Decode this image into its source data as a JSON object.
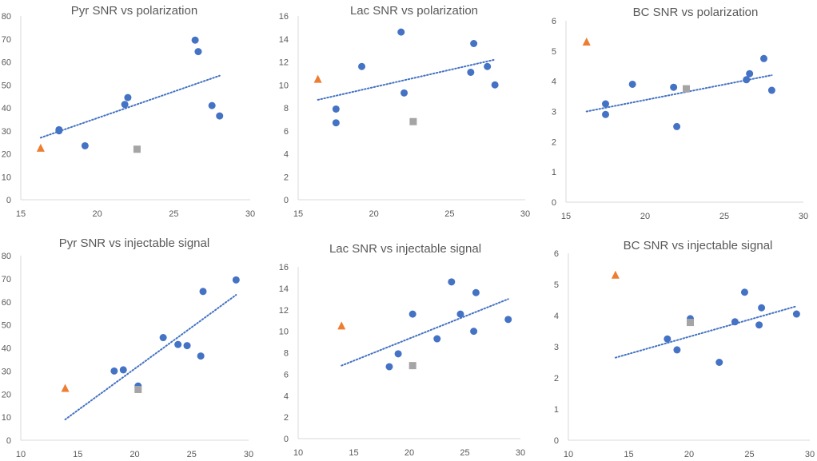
{
  "chart_data": [
    {
      "type": "scatter",
      "title": "Pyr SNR vs polarization",
      "xlim": [
        15,
        30
      ],
      "ylim": [
        0,
        80
      ],
      "xticks": [
        15,
        20,
        25,
        30
      ],
      "yticks": [
        0,
        10,
        20,
        30,
        40,
        50,
        60,
        70,
        80
      ],
      "series": [
        {
          "name": "circles",
          "marker": "circle",
          "color": "#4472c4",
          "x": [
            17.5,
            19.2,
            21.8,
            22.0,
            26.4,
            26.6,
            27.5,
            28.0,
            17.5
          ],
          "y": [
            30.0,
            23.5,
            41.5,
            44.5,
            69.5,
            64.5,
            41.0,
            36.5,
            30.5
          ]
        },
        {
          "name": "triangle",
          "marker": "triangle",
          "color": "#ed7d31",
          "x": [
            16.3
          ],
          "y": [
            22.5
          ]
        },
        {
          "name": "square",
          "marker": "square",
          "color": "#a5a5a5",
          "x": [
            22.6
          ],
          "y": [
            22.0
          ]
        }
      ],
      "trendline": {
        "x": [
          16.3,
          28.0
        ],
        "y": [
          27.0,
          54.0
        ],
        "color": "#4472c4"
      }
    },
    {
      "type": "scatter",
      "title": "Lac SNR vs polarization",
      "xlim": [
        15,
        30
      ],
      "ylim": [
        0,
        16
      ],
      "xticks": [
        15,
        20,
        25,
        30
      ],
      "yticks": [
        0,
        2,
        4,
        6,
        8,
        10,
        12,
        14,
        16
      ],
      "series": [
        {
          "name": "circles",
          "marker": "circle",
          "color": "#4472c4",
          "x": [
            17.5,
            17.5,
            19.2,
            21.8,
            22.0,
            26.4,
            26.6,
            27.5,
            28.0
          ],
          "y": [
            7.9,
            6.7,
            11.6,
            14.6,
            9.3,
            11.1,
            13.6,
            11.6,
            10.0
          ]
        },
        {
          "name": "triangle",
          "marker": "triangle",
          "color": "#ed7d31",
          "x": [
            16.3
          ],
          "y": [
            10.5
          ]
        },
        {
          "name": "square",
          "marker": "square",
          "color": "#a5a5a5",
          "x": [
            22.6
          ],
          "y": [
            6.8
          ]
        }
      ],
      "trendline": {
        "x": [
          16.3,
          28.0
        ],
        "y": [
          8.7,
          12.2
        ],
        "color": "#4472c4"
      }
    },
    {
      "type": "scatter",
      "title": "BC SNR vs polarization",
      "xlim": [
        15,
        30
      ],
      "ylim": [
        0,
        6
      ],
      "xticks": [
        15,
        20,
        25,
        30
      ],
      "yticks": [
        0,
        1,
        2,
        3,
        4,
        5,
        6
      ],
      "series": [
        {
          "name": "circles",
          "marker": "circle",
          "color": "#4472c4",
          "x": [
            17.5,
            17.5,
            19.2,
            21.8,
            22.0,
            26.4,
            26.6,
            27.5,
            28.0
          ],
          "y": [
            3.25,
            2.9,
            3.9,
            3.8,
            2.5,
            4.05,
            4.25,
            4.75,
            3.7
          ]
        },
        {
          "name": "triangle",
          "marker": "triangle",
          "color": "#ed7d31",
          "x": [
            16.3
          ],
          "y": [
            5.3
          ]
        },
        {
          "name": "square",
          "marker": "square",
          "color": "#a5a5a5",
          "x": [
            22.6
          ],
          "y": [
            3.75
          ]
        }
      ],
      "trendline": {
        "x": [
          16.3,
          28.0
        ],
        "y": [
          3.0,
          4.2
        ],
        "color": "#4472c4"
      }
    },
    {
      "type": "scatter",
      "title": "Pyr SNR vs injectable signal",
      "xlim": [
        10,
        30
      ],
      "ylim": [
        0,
        80
      ],
      "xticks": [
        10,
        15,
        20,
        25,
        30
      ],
      "yticks": [
        0,
        10,
        20,
        30,
        40,
        50,
        60,
        70,
        80
      ],
      "series": [
        {
          "name": "circles",
          "marker": "circle",
          "color": "#4472c4",
          "x": [
            18.2,
            19.0,
            20.3,
            22.5,
            23.8,
            24.6,
            25.8,
            26.0,
            28.9
          ],
          "y": [
            30.0,
            30.5,
            23.5,
            44.5,
            41.5,
            41.0,
            36.5,
            64.5,
            69.5
          ]
        },
        {
          "name": "triangle",
          "marker": "triangle",
          "color": "#ed7d31",
          "x": [
            13.9
          ],
          "y": [
            22.5
          ]
        },
        {
          "name": "square",
          "marker": "square",
          "color": "#a5a5a5",
          "x": [
            20.3
          ],
          "y": [
            22.0
          ]
        }
      ],
      "trendline": {
        "x": [
          13.9,
          28.9
        ],
        "y": [
          9.0,
          63.0
        ],
        "color": "#4472c4"
      }
    },
    {
      "type": "scatter",
      "title": "Lac SNR vs injectable signal",
      "xlim": [
        10,
        30
      ],
      "ylim": [
        0,
        16
      ],
      "xticks": [
        10,
        15,
        20,
        25,
        30
      ],
      "yticks": [
        0,
        2,
        4,
        6,
        8,
        10,
        12,
        14,
        16
      ],
      "series": [
        {
          "name": "circles",
          "marker": "circle",
          "color": "#4472c4",
          "x": [
            18.2,
            19.0,
            20.3,
            22.5,
            23.8,
            24.6,
            25.8,
            26.0,
            28.9
          ],
          "y": [
            6.7,
            7.9,
            11.6,
            9.3,
            14.6,
            11.6,
            10.0,
            13.6,
            11.1
          ]
        },
        {
          "name": "triangle",
          "marker": "triangle",
          "color": "#ed7d31",
          "x": [
            13.9
          ],
          "y": [
            10.5
          ]
        },
        {
          "name": "square",
          "marker": "square",
          "color": "#a5a5a5",
          "x": [
            20.3
          ],
          "y": [
            6.8
          ]
        }
      ],
      "trendline": {
        "x": [
          13.9,
          28.9
        ],
        "y": [
          6.8,
          13.0
        ],
        "color": "#4472c4"
      }
    },
    {
      "type": "scatter",
      "title": "BC SNR vs injectable signal",
      "xlim": [
        10,
        30
      ],
      "ylim": [
        0,
        6
      ],
      "xticks": [
        10,
        15,
        20,
        25,
        30
      ],
      "yticks": [
        0,
        1,
        2,
        3,
        4,
        5,
        6
      ],
      "series": [
        {
          "name": "circles",
          "marker": "circle",
          "color": "#4472c4",
          "x": [
            18.2,
            19.0,
            20.1,
            22.5,
            23.8,
            24.6,
            25.8,
            26.0,
            28.9
          ],
          "y": [
            3.25,
            2.9,
            3.9,
            2.5,
            3.8,
            4.75,
            3.7,
            4.25,
            4.05
          ]
        },
        {
          "name": "triangle",
          "marker": "triangle",
          "color": "#ed7d31",
          "x": [
            13.9
          ],
          "y": [
            5.3
          ]
        },
        {
          "name": "square",
          "marker": "square",
          "color": "#a5a5a5",
          "x": [
            20.1
          ],
          "y": [
            3.78
          ]
        }
      ],
      "trendline": {
        "x": [
          13.9,
          28.9
        ],
        "y": [
          2.65,
          4.3
        ],
        "color": "#4472c4"
      }
    }
  ]
}
